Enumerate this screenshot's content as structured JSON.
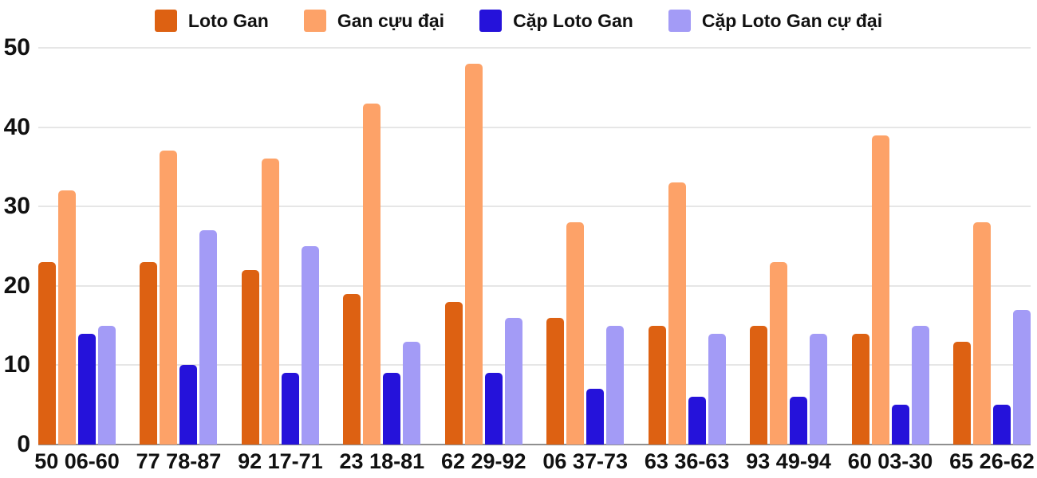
{
  "chart_data": {
    "type": "bar",
    "title": "",
    "xlabel": "",
    "ylabel": "",
    "ylim": [
      0,
      50
    ],
    "yticks": [
      0,
      10,
      20,
      30,
      40,
      50
    ],
    "grid": true,
    "legend_position": "top",
    "background_color": "#ffffff",
    "gridline_color": "#e6e6e6",
    "baseline_color": "#8f8f8f",
    "text_color": "#111111",
    "categories": [
      "50 06-60",
      "77 78-87",
      "92 17-71",
      "23 18-81",
      "62 29-92",
      "06 37-73",
      "63 36-63",
      "93 49-94",
      "60 03-30",
      "65 26-62"
    ],
    "series": [
      {
        "name": "Loto Gan",
        "color": "#dd6112",
        "values": [
          23,
          23,
          22,
          19,
          18,
          16,
          15,
          15,
          14,
          13
        ]
      },
      {
        "name": "Gan cựu đại",
        "color": "#fda268",
        "values": [
          32,
          37,
          36,
          43,
          48,
          28,
          33,
          23,
          39,
          28
        ]
      },
      {
        "name": "Cặp Loto Gan",
        "color": "#2512da",
        "values": [
          14,
          10,
          9,
          9,
          9,
          7,
          6,
          6,
          5,
          5
        ]
      },
      {
        "name": "Cặp Loto Gan cự đại",
        "color": "#a39bf6",
        "values": [
          15,
          27,
          25,
          13,
          16,
          15,
          14,
          14,
          15,
          17
        ]
      }
    ]
  }
}
